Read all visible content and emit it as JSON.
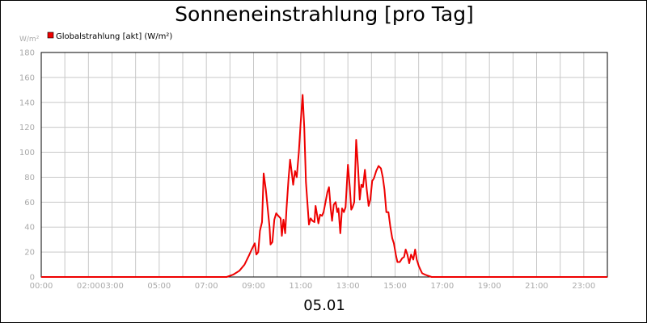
{
  "chart_data": {
    "type": "line",
    "title": "Sonneneinstrahlung [pro Tag]",
    "xlabel": "05.01",
    "ylabel": "W/m²",
    "ylim": [
      0,
      180
    ],
    "xlim": [
      0,
      24
    ],
    "grid": true,
    "legend_position": "top-left",
    "y_ticks": [
      "0",
      "20",
      "40",
      "60",
      "80",
      "100",
      "120",
      "140",
      "160",
      "180"
    ],
    "x_ticks": [
      {
        "label": "00:00",
        "x": 0
      },
      {
        "label": "02:00",
        "x": 2
      },
      {
        "label": "03:00",
        "x": 3
      },
      {
        "label": "05:00",
        "x": 5
      },
      {
        "label": "07:00",
        "x": 7
      },
      {
        "label": "09:00",
        "x": 9
      },
      {
        "label": "11:00",
        "x": 11
      },
      {
        "label": "13:00",
        "x": 13
      },
      {
        "label": "15:00",
        "x": 15
      },
      {
        "label": "17:00",
        "x": 17
      },
      {
        "label": "19:00",
        "x": 19
      },
      {
        "label": "21:00",
        "x": 21
      },
      {
        "label": "23:00",
        "x": 23
      }
    ],
    "series": [
      {
        "name": "Globalstrahlung [akt] (W/m²)",
        "color": "#ee0000",
        "points": [
          [
            0,
            0
          ],
          [
            7.86,
            0
          ],
          [
            8.15,
            2
          ],
          [
            8.4,
            5
          ],
          [
            8.62,
            10
          ],
          [
            8.8,
            17
          ],
          [
            8.92,
            22
          ],
          [
            9.05,
            27
          ],
          [
            9.12,
            18
          ],
          [
            9.2,
            20
          ],
          [
            9.27,
            37
          ],
          [
            9.36,
            44
          ],
          [
            9.43,
            83
          ],
          [
            9.52,
            70
          ],
          [
            9.6,
            55
          ],
          [
            9.68,
            40
          ],
          [
            9.72,
            26
          ],
          [
            9.8,
            28
          ],
          [
            9.88,
            46
          ],
          [
            9.96,
            51
          ],
          [
            10.05,
            49
          ],
          [
            10.15,
            47
          ],
          [
            10.2,
            33
          ],
          [
            10.27,
            46
          ],
          [
            10.34,
            35
          ],
          [
            10.4,
            55
          ],
          [
            10.48,
            78
          ],
          [
            10.55,
            94
          ],
          [
            10.62,
            84
          ],
          [
            10.68,
            74
          ],
          [
            10.76,
            85
          ],
          [
            10.83,
            80
          ],
          [
            10.92,
            100
          ],
          [
            11.0,
            124
          ],
          [
            11.08,
            146
          ],
          [
            11.15,
            120
          ],
          [
            11.22,
            76
          ],
          [
            11.3,
            55
          ],
          [
            11.35,
            42
          ],
          [
            11.42,
            47
          ],
          [
            11.5,
            45
          ],
          [
            11.58,
            44
          ],
          [
            11.63,
            57
          ],
          [
            11.7,
            49
          ],
          [
            11.75,
            43
          ],
          [
            11.82,
            50
          ],
          [
            11.9,
            49
          ],
          [
            11.97,
            52
          ],
          [
            12.05,
            60
          ],
          [
            12.13,
            68
          ],
          [
            12.2,
            72
          ],
          [
            12.27,
            55
          ],
          [
            12.33,
            45
          ],
          [
            12.4,
            58
          ],
          [
            12.48,
            60
          ],
          [
            12.55,
            52
          ],
          [
            12.6,
            55
          ],
          [
            12.68,
            35
          ],
          [
            12.75,
            55
          ],
          [
            12.83,
            52
          ],
          [
            12.9,
            56
          ],
          [
            13.0,
            90
          ],
          [
            13.08,
            72
          ],
          [
            13.14,
            54
          ],
          [
            13.2,
            56
          ],
          [
            13.27,
            60
          ],
          [
            13.35,
            110
          ],
          [
            13.43,
            88
          ],
          [
            13.5,
            62
          ],
          [
            13.57,
            74
          ],
          [
            13.64,
            72
          ],
          [
            13.72,
            86
          ],
          [
            13.8,
            70
          ],
          [
            13.88,
            57
          ],
          [
            13.95,
            62
          ],
          [
            14.03,
            77
          ],
          [
            14.1,
            79
          ],
          [
            14.2,
            85
          ],
          [
            14.3,
            89
          ],
          [
            14.4,
            87
          ],
          [
            14.48,
            80
          ],
          [
            14.55,
            70
          ],
          [
            14.63,
            52
          ],
          [
            14.72,
            52
          ],
          [
            14.8,
            40
          ],
          [
            14.88,
            31
          ],
          [
            14.95,
            27
          ],
          [
            15.03,
            18
          ],
          [
            15.1,
            12
          ],
          [
            15.2,
            12
          ],
          [
            15.3,
            15
          ],
          [
            15.38,
            16
          ],
          [
            15.45,
            22
          ],
          [
            15.52,
            18
          ],
          [
            15.6,
            11
          ],
          [
            15.68,
            18
          ],
          [
            15.77,
            14
          ],
          [
            15.85,
            22
          ],
          [
            15.92,
            14
          ],
          [
            16.0,
            9
          ],
          [
            16.07,
            6
          ],
          [
            16.15,
            3
          ],
          [
            16.25,
            2
          ],
          [
            16.4,
            1
          ],
          [
            16.55,
            0
          ],
          [
            24,
            0
          ]
        ]
      }
    ]
  }
}
